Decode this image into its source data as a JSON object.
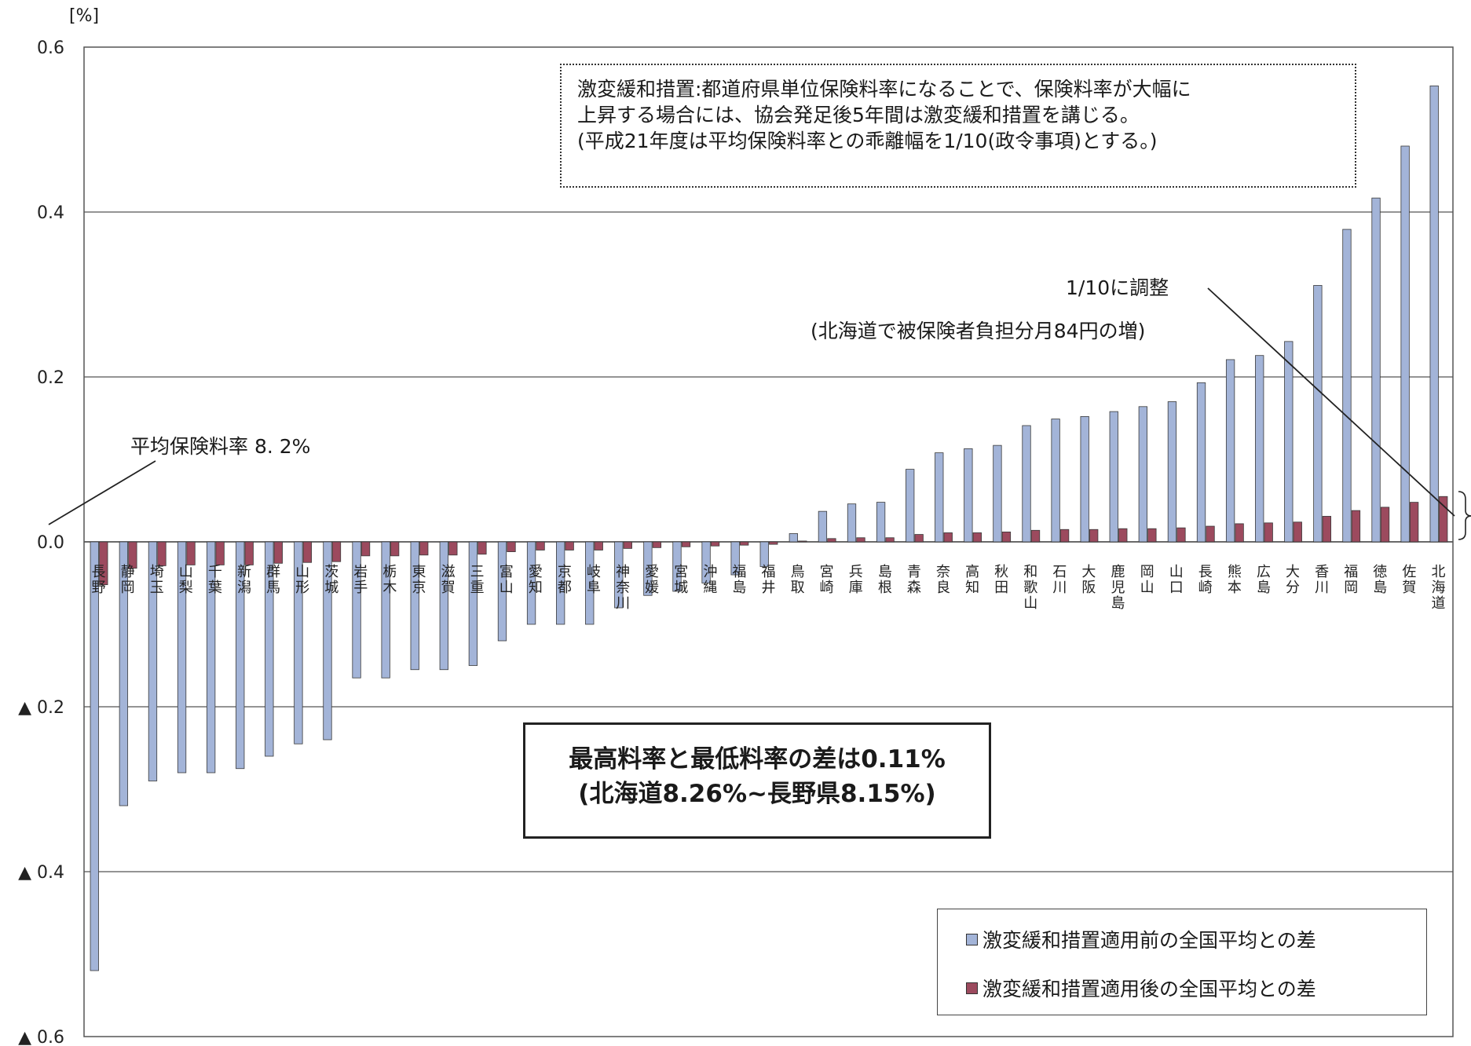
{
  "chart_data": {
    "type": "bar",
    "ylabel": "[%]",
    "ylim": [
      -0.6,
      0.6
    ],
    "y_ticks": [
      {
        "value": 0.6,
        "label": "0.6"
      },
      {
        "value": 0.4,
        "label": "0.4"
      },
      {
        "value": 0.2,
        "label": "0.2"
      },
      {
        "value": 0.0,
        "label": "0.0"
      },
      {
        "value": -0.2,
        "label": "▲ 0.2"
      },
      {
        "value": -0.4,
        "label": "▲ 0.4"
      },
      {
        "value": -0.6,
        "label": "▲ 0.6"
      }
    ],
    "grid": true,
    "legend_position": "bottom-right",
    "categories": [
      "長野",
      "静岡",
      "埼玉",
      "山梨",
      "千葉",
      "新潟",
      "群馬",
      "山形",
      "茨城",
      "岩手",
      "栃木",
      "東京",
      "滋賀",
      "三重",
      "富山",
      "愛知",
      "京都",
      "岐阜",
      "神奈川",
      "愛媛",
      "宮城",
      "沖縄",
      "福島",
      "福井",
      "鳥取",
      "宮崎",
      "兵庫",
      "島根",
      "青森",
      "奈良",
      "高知",
      "秋田",
      "和歌山",
      "石川",
      "大阪",
      "鹿児島",
      "岡山",
      "山口",
      "長崎",
      "熊本",
      "広島",
      "大分",
      "香川",
      "福岡",
      "徳島",
      "佐賀",
      "北海道"
    ],
    "series": [
      {
        "name": "激変緩和措置適用前の全国平均との差",
        "color": "#a3b4d8",
        "values": [
          -0.52,
          -0.32,
          -0.29,
          -0.28,
          -0.28,
          -0.275,
          -0.26,
          -0.245,
          -0.24,
          -0.165,
          -0.165,
          -0.155,
          -0.155,
          -0.15,
          -0.12,
          -0.1,
          -0.1,
          -0.1,
          -0.08,
          -0.065,
          -0.06,
          -0.05,
          -0.04,
          -0.03,
          0.01,
          0.037,
          0.046,
          0.048,
          0.088,
          0.108,
          0.113,
          0.117,
          0.141,
          0.149,
          0.152,
          0.158,
          0.164,
          0.17,
          0.193,
          0.221,
          0.226,
          0.243,
          0.311,
          0.379,
          0.417,
          0.48,
          0.553
        ]
      },
      {
        "name": "激変緩和措置適用後の全国平均との差",
        "color": "#9c4a5e",
        "values": [
          -0.052,
          -0.032,
          -0.029,
          -0.028,
          -0.028,
          -0.028,
          -0.026,
          -0.025,
          -0.024,
          -0.017,
          -0.017,
          -0.016,
          -0.016,
          -0.015,
          -0.012,
          -0.01,
          -0.01,
          -0.01,
          -0.008,
          -0.007,
          -0.006,
          -0.005,
          -0.004,
          -0.003,
          0.001,
          0.004,
          0.005,
          0.005,
          0.009,
          0.011,
          0.011,
          0.012,
          0.014,
          0.015,
          0.015,
          0.016,
          0.016,
          0.017,
          0.019,
          0.022,
          0.023,
          0.024,
          0.031,
          0.038,
          0.042,
          0.048,
          0.055
        ]
      }
    ]
  },
  "annotations": {
    "measure_box": [
      "激変緩和措置:都道府県単位保険料率になることで、保険料率が大幅に",
      "上昇する場合には、協会発足後5年間は激変緩和措置を講じる。",
      "(平成21年度は平均保険料率との乖離幅を1/10(政令事項)とする。)"
    ],
    "adjust_label": "1/10に調整",
    "adjust_note": "(北海道で被保険者負担分月84円の増)",
    "avg_rate": "平均保険料率 8. 2%",
    "summary_line1": "最高料率と最低料率の差は0.11%",
    "summary_line2": "(北海道8.26%~長野県8.15%)"
  }
}
